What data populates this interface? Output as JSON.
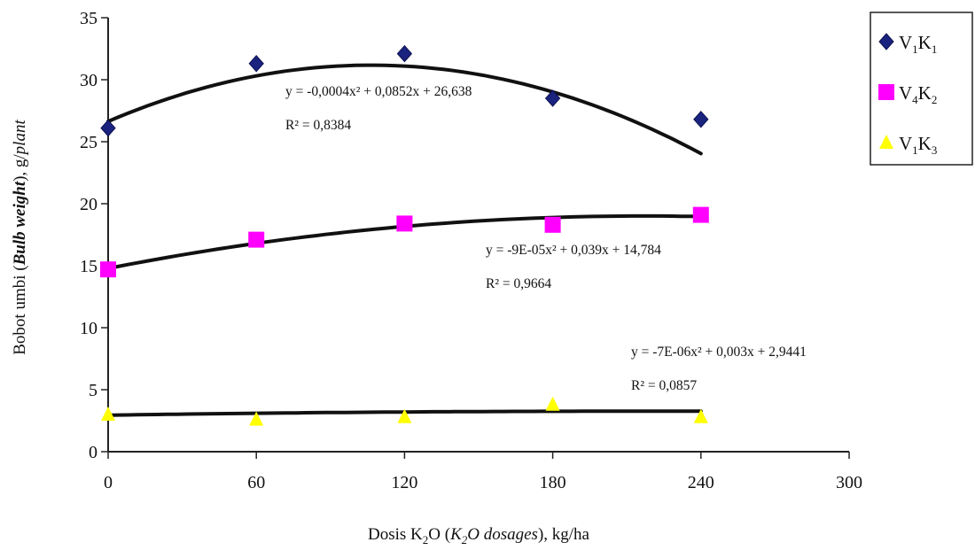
{
  "chart_data": {
    "type": "scatter",
    "x_ticks": [
      0,
      60,
      120,
      180,
      240,
      300
    ],
    "y_ticks": [
      0,
      5,
      10,
      15,
      20,
      25,
      30,
      35
    ],
    "xlim": [
      0,
      300
    ],
    "ylim": [
      0,
      35
    ],
    "grid": false,
    "legend_position": "top-right",
    "xlabel": {
      "pre": "Dosis K",
      "sub": "2",
      "mid": "O (",
      "ital": "K",
      "ital_sub": "2",
      "ital_post": "O dosages",
      "post": "), kg/ha"
    },
    "ylabel": {
      "pre": "Bobot umbi (",
      "ital": "Bulb weight",
      "mid": "), g/",
      "ital2": "plant"
    },
    "series": [
      {
        "name": "V1K1",
        "legend": {
          "v": "V",
          "v_sub": "1",
          "k": "K",
          "k_sub": "1"
        },
        "color": "#1a237e",
        "marker": "diamond",
        "x": [
          0,
          60,
          120,
          180,
          240
        ],
        "values": [
          26.1,
          31.3,
          32.1,
          28.5,
          26.8
        ],
        "trendline": {
          "a": -0.0004,
          "b": 0.0852,
          "c": 26.638
        },
        "equation": "y = -0,0004x² + 0,0852x + 26,638",
        "r2": "R² = 0,8384"
      },
      {
        "name": "V4K2",
        "legend": {
          "v": "V",
          "v_sub": "4",
          "k": "K",
          "k_sub": "2"
        },
        "color": "#ff00ff",
        "marker": "square",
        "x": [
          0,
          60,
          120,
          180,
          240
        ],
        "values": [
          14.7,
          17.1,
          18.4,
          18.3,
          19.1
        ],
        "trendline": {
          "a": -9e-05,
          "b": 0.039,
          "c": 14.784
        },
        "equation": "y = -9E-05x² + 0,039x + 14,784",
        "r2": "R² = 0,9664"
      },
      {
        "name": "V1K3",
        "legend": {
          "v": "V",
          "v_sub": "1",
          "k": "K",
          "k_sub": "3"
        },
        "color": "#ffff00",
        "marker": "triangle",
        "x": [
          0,
          60,
          120,
          180,
          240
        ],
        "values": [
          3.0,
          2.6,
          2.8,
          3.8,
          2.8
        ],
        "trendline": {
          "a": -7e-06,
          "b": 0.003,
          "c": 2.9441
        },
        "equation": "y = -7E-06x² + 0,003x + 2,9441",
        "r2": "R² = 0,0857"
      }
    ]
  }
}
